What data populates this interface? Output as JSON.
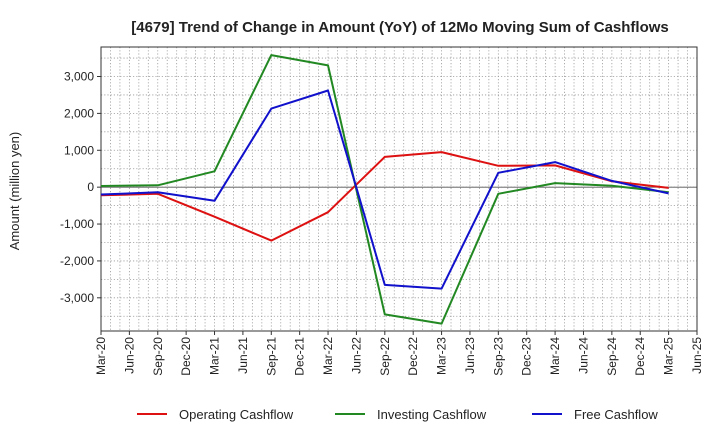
{
  "chart_data": {
    "type": "line",
    "title": "[4679]  Trend of Change in Amount (YoY) of 12Mo Moving Sum of Cashflows",
    "xlabel": "",
    "ylabel": "Amount (million yen)",
    "ylim": [
      -3900,
      3800
    ],
    "yticks": [
      -3000,
      -2000,
      -1000,
      0,
      1000,
      2000,
      3000
    ],
    "ytick_labels": [
      "-3,000",
      "-2,000",
      "-1,000",
      "0",
      "1,000",
      "2,000",
      "3,000"
    ],
    "categories": [
      "Mar-20",
      "Jun-20",
      "Sep-20",
      "Dec-20",
      "Mar-21",
      "Jun-21",
      "Sep-21",
      "Dec-21",
      "Mar-22",
      "Jun-22",
      "Sep-22",
      "Dec-22",
      "Mar-23",
      "Jun-23",
      "Sep-23",
      "Dec-23",
      "Mar-24",
      "Jun-24",
      "Sep-24",
      "Dec-24",
      "Mar-25",
      "Jun-25"
    ],
    "grid": true,
    "legend_position": "bottom",
    "series": [
      {
        "name": "Operating Cashflow",
        "color": "#dd1111",
        "points": [
          [
            "Mar-20",
            -220
          ],
          [
            "Sep-20",
            -180
          ],
          [
            "Mar-21",
            -800
          ],
          [
            "Sep-21",
            -1450
          ],
          [
            "Mar-22",
            -680
          ],
          [
            "Sep-22",
            820
          ],
          [
            "Mar-23",
            950
          ],
          [
            "Sep-23",
            580
          ],
          [
            "Mar-24",
            590
          ],
          [
            "Sep-24",
            160
          ],
          [
            "Mar-25",
            -20
          ]
        ]
      },
      {
        "name": "Investing Cashflow",
        "color": "#228822",
        "points": [
          [
            "Mar-20",
            30
          ],
          [
            "Sep-20",
            50
          ],
          [
            "Mar-21",
            430
          ],
          [
            "Sep-21",
            3580
          ],
          [
            "Mar-22",
            3300
          ],
          [
            "Sep-22",
            -3450
          ],
          [
            "Mar-23",
            -3700
          ],
          [
            "Sep-23",
            -180
          ],
          [
            "Mar-24",
            110
          ],
          [
            "Sep-24",
            40
          ],
          [
            "Mar-25",
            -140
          ]
        ]
      },
      {
        "name": "Free Cashflow",
        "color": "#1111cc",
        "points": [
          [
            "Mar-20",
            -200
          ],
          [
            "Sep-20",
            -140
          ],
          [
            "Mar-21",
            -370
          ],
          [
            "Sep-21",
            2130
          ],
          [
            "Mar-22",
            2620
          ],
          [
            "Sep-22",
            -2650
          ],
          [
            "Mar-23",
            -2750
          ],
          [
            "Sep-23",
            390
          ],
          [
            "Mar-24",
            680
          ],
          [
            "Sep-24",
            170
          ],
          [
            "Mar-25",
            -170
          ]
        ]
      }
    ]
  }
}
